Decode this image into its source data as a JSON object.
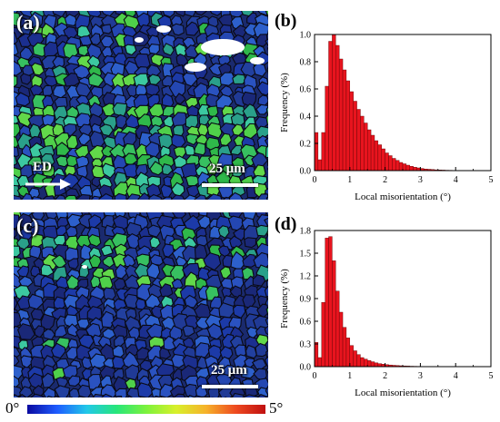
{
  "panels": {
    "a": {
      "tag": "(a)",
      "scale_label": "25 μm",
      "direction_label": "ED"
    },
    "b": {
      "tag": "(b)"
    },
    "c": {
      "tag": "(c)",
      "scale_label": "25 μm"
    },
    "d": {
      "tag": "(d)"
    }
  },
  "colorbar": {
    "min_label": "0°",
    "max_label": "5°",
    "colors": [
      "#0a0aa0",
      "#1e5cff",
      "#21c8e8",
      "#27e67a",
      "#7cf23c",
      "#d8f02a",
      "#f6b22a",
      "#ee4a20",
      "#c01010"
    ]
  },
  "chart_data": [
    {
      "type": "bar",
      "panel": "(b)",
      "xlabel": "Local misorientation (°)",
      "ylabel": "Frequency (%)",
      "xlim": [
        0,
        5
      ],
      "ylim": [
        0,
        1.0
      ],
      "xticks": [
        "0",
        "1",
        "2",
        "3",
        "4",
        "5"
      ],
      "yticks": [
        "0.0",
        "0.2",
        "0.4",
        "0.6",
        "0.8",
        "1.0"
      ],
      "bar_color": "#e8141e",
      "bin_width": 0.1,
      "x": [
        0.05,
        0.15,
        0.25,
        0.35,
        0.45,
        0.55,
        0.65,
        0.75,
        0.85,
        0.95,
        1.05,
        1.15,
        1.25,
        1.35,
        1.45,
        1.55,
        1.65,
        1.75,
        1.85,
        1.95,
        2.05,
        2.15,
        2.25,
        2.35,
        2.45,
        2.55,
        2.65,
        2.75,
        2.85,
        2.95,
        3.05,
        3.15,
        3.25,
        3.35,
        3.45,
        3.55,
        3.65,
        3.75,
        3.85,
        3.95,
        4.05,
        4.15,
        4.25,
        4.35
      ],
      "values": [
        0.28,
        0.08,
        0.28,
        0.62,
        0.95,
        1.0,
        0.92,
        0.82,
        0.74,
        0.66,
        0.58,
        0.51,
        0.45,
        0.4,
        0.35,
        0.3,
        0.26,
        0.22,
        0.19,
        0.16,
        0.13,
        0.11,
        0.09,
        0.075,
        0.06,
        0.05,
        0.04,
        0.032,
        0.025,
        0.02,
        0.016,
        0.012,
        0.01,
        0.008,
        0.006,
        0.005,
        0.004,
        0.003,
        0.0025,
        0.002,
        0.0015,
        0.001,
        0.001,
        0.0008
      ]
    },
    {
      "type": "bar",
      "panel": "(d)",
      "xlabel": "Local misorientation (°)",
      "ylabel": "Frequency (%)",
      "xlim": [
        0,
        5
      ],
      "ylim": [
        0,
        1.8
      ],
      "xticks": [
        "0",
        "1",
        "2",
        "3",
        "4",
        "5"
      ],
      "yticks": [
        "0.0",
        "0.3",
        "0.6",
        "0.9",
        "1.2",
        "1.5",
        "1.8"
      ],
      "bar_color": "#e8141e",
      "bin_width": 0.1,
      "x": [
        0.05,
        0.15,
        0.25,
        0.35,
        0.45,
        0.55,
        0.65,
        0.75,
        0.85,
        0.95,
        1.05,
        1.15,
        1.25,
        1.35,
        1.45,
        1.55,
        1.65,
        1.75,
        1.85,
        1.95,
        2.05,
        2.15,
        2.25,
        2.35,
        2.45,
        2.55,
        2.65,
        2.75,
        2.85,
        2.95,
        3.05,
        3.15,
        3.25,
        3.35,
        3.45,
        3.55,
        3.65,
        3.75,
        3.85,
        3.95
      ],
      "values": [
        0.32,
        0.12,
        0.85,
        1.7,
        1.72,
        1.4,
        1.0,
        0.72,
        0.52,
        0.38,
        0.28,
        0.21,
        0.16,
        0.12,
        0.1,
        0.08,
        0.065,
        0.05,
        0.04,
        0.033,
        0.027,
        0.022,
        0.018,
        0.015,
        0.012,
        0.01,
        0.008,
        0.006,
        0.005,
        0.004,
        0.003,
        0.0025,
        0.002,
        0.0015,
        0.0012,
        0.001,
        0.0008,
        0.0006,
        0.0005,
        0.0004
      ]
    }
  ]
}
